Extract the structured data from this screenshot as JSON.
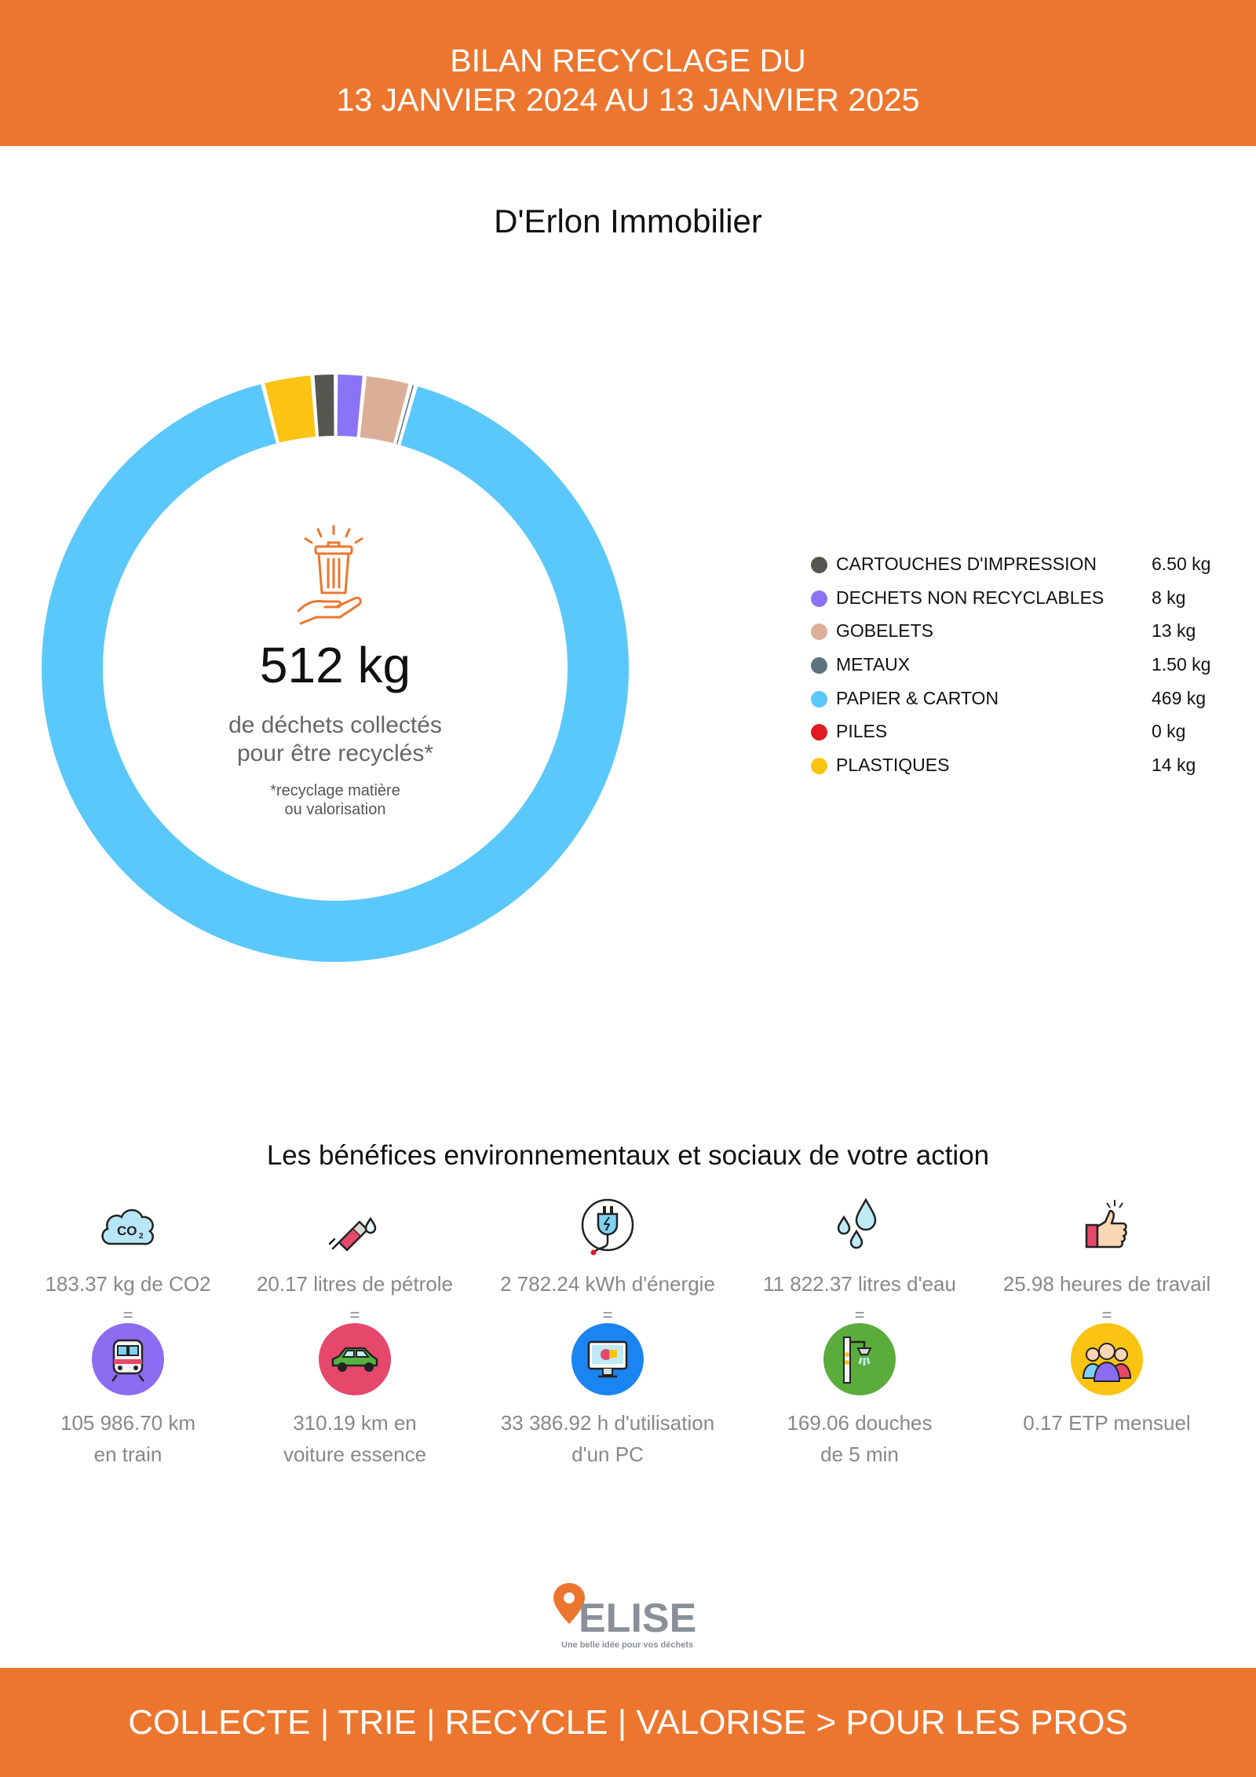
{
  "header": {
    "line1": "BILAN RECYCLAGE DU",
    "line2": "13 JANVIER 2024 AU 13 JANVIER 2025"
  },
  "company": "D'Erlon Immobilier",
  "center": {
    "total": "512 kg",
    "sub_line1": "de déchets collectés",
    "sub_line2": "pour être recyclés*",
    "note_line1": "*recyclage matière",
    "note_line2": "ou valorisation"
  },
  "chart_data": {
    "type": "pie",
    "unit": "kg",
    "categories": [
      "CARTOUCHES D'IMPRESSION",
      "DECHETS NON RECYCLABLES",
      "GOBELETS",
      "METAUX",
      "PAPIER & CARTON",
      "PILES",
      "PLASTIQUES"
    ],
    "values": [
      6.5,
      8,
      13,
      1.5,
      469,
      0,
      14
    ],
    "labels": [
      "6.50 kg",
      "8 kg",
      "13 kg",
      "1.50 kg",
      "469 kg",
      "0 kg",
      "14 kg"
    ],
    "colors": [
      "#55564f",
      "#8b73f5",
      "#dbaf97",
      "#5c7380",
      "#5bc8fb",
      "#e11b22",
      "#fbc312"
    ],
    "draw_order": [
      6,
      0,
      1,
      2,
      3,
      4
    ],
    "legend_position": "right"
  },
  "benefits": {
    "title": "Les bénéfices environnementaux et sociaux de votre action",
    "equals": "=",
    "items": [
      {
        "amount": "183.37 kg de CO2",
        "equiv_line1": "105 986.70 km",
        "equiv_line2": "en train",
        "icon": "co2-cloud-icon",
        "equiv_icon": "train-icon",
        "color": "#8c6cf1"
      },
      {
        "amount": "20.17 litres de pétrole",
        "equiv_line1": "310.19 km en",
        "equiv_line2": "voiture essence",
        "icon": "fuel-pump-icon",
        "equiv_icon": "car-icon",
        "color": "#e5486a"
      },
      {
        "amount": "2 782.24 kWh d'énergie",
        "equiv_line1": "33 386.92 h d'utilisation",
        "equiv_line2": "d'un PC",
        "icon": "electric-plug-icon",
        "equiv_icon": "computer-icon",
        "color": "#1a84f0"
      },
      {
        "amount": "11 822.37 litres d'eau",
        "equiv_line1": "169.06 douches",
        "equiv_line2": "de 5 min",
        "icon": "water-drops-icon",
        "equiv_icon": "shower-icon",
        "color": "#5aac3b"
      },
      {
        "amount": "25.98 heures de travail",
        "equiv_line1": "0.17 ETP mensuel",
        "equiv_line2": "",
        "icon": "thumbs-up-icon",
        "equiv_icon": "team-icon",
        "color": "#fbc312"
      }
    ]
  },
  "logo": {
    "name": "ELISE",
    "tagline": "Une belle idée pour vos déchets"
  },
  "footer": "COLLECTE | TRIE | RECYCLE | VALORISE > POUR LES PROS"
}
